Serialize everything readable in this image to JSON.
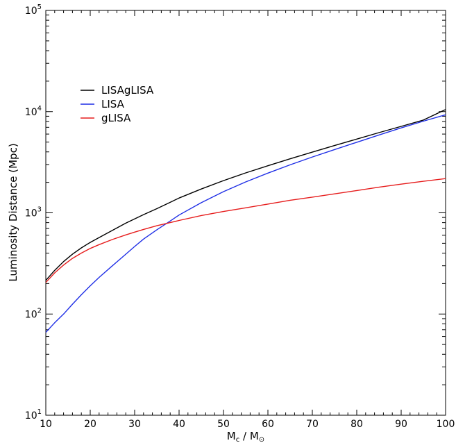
{
  "chart_data": {
    "type": "line",
    "title": "",
    "xlabel": "Mc / Mo",
    "xlabel_main": "M",
    "xlabel_sub1": "c",
    "xlabel_sep": " / M",
    "xlabel_sub2": "⊙",
    "ylabel": "Luminosity Distance (Mpc)",
    "xlim": [
      10,
      100
    ],
    "ylim": [
      10,
      100000
    ],
    "yscale": "log",
    "grid": false,
    "legend_position": "top-left",
    "x_ticks": [
      10,
      20,
      30,
      40,
      50,
      60,
      70,
      80,
      90,
      100
    ],
    "x_tick_labels": [
      "10",
      "20",
      "30",
      "40",
      "50",
      "60",
      "70",
      "80",
      "90",
      "100"
    ],
    "y_ticks": [
      {
        "value": 10,
        "base": "10",
        "exp": "1"
      },
      {
        "value": 100,
        "base": "10",
        "exp": "2"
      },
      {
        "value": 1000,
        "base": "10",
        "exp": "3"
      },
      {
        "value": 10000,
        "base": "10",
        "exp": "4"
      },
      {
        "value": 100000,
        "base": "10",
        "exp": "5"
      }
    ],
    "x": [
      10,
      12,
      14,
      16,
      18,
      20,
      22,
      25,
      28,
      30,
      32,
      35,
      38,
      40,
      45,
      50,
      55,
      60,
      65,
      70,
      75,
      80,
      85,
      90,
      95,
      100
    ],
    "series": [
      {
        "name": "LISAgLISA",
        "color": "#000000",
        "values": [
          215,
          270,
          330,
          390,
          450,
          510,
          570,
          670,
          790,
          870,
          960,
          1100,
          1270,
          1400,
          1720,
          2080,
          2480,
          2920,
          3420,
          3980,
          4620,
          5350,
          6200,
          7150,
          8250,
          10500
        ]
      },
      {
        "name": "LISA",
        "color": "#1f2fe6",
        "values": [
          66,
          82,
          100,
          125,
          155,
          190,
          230,
          300,
          390,
          465,
          550,
          680,
          830,
          950,
          1260,
          1620,
          2020,
          2470,
          2980,
          3560,
          4220,
          4980,
          5880,
          6900,
          8050,
          9300
        ]
      },
      {
        "name": "gLISA",
        "color": "#e61c1c",
        "values": [
          205,
          255,
          305,
          355,
          400,
          445,
          485,
          545,
          605,
          645,
          685,
          745,
          800,
          840,
          940,
          1030,
          1120,
          1220,
          1330,
          1430,
          1540,
          1660,
          1790,
          1920,
          2050,
          2180
        ]
      }
    ]
  }
}
